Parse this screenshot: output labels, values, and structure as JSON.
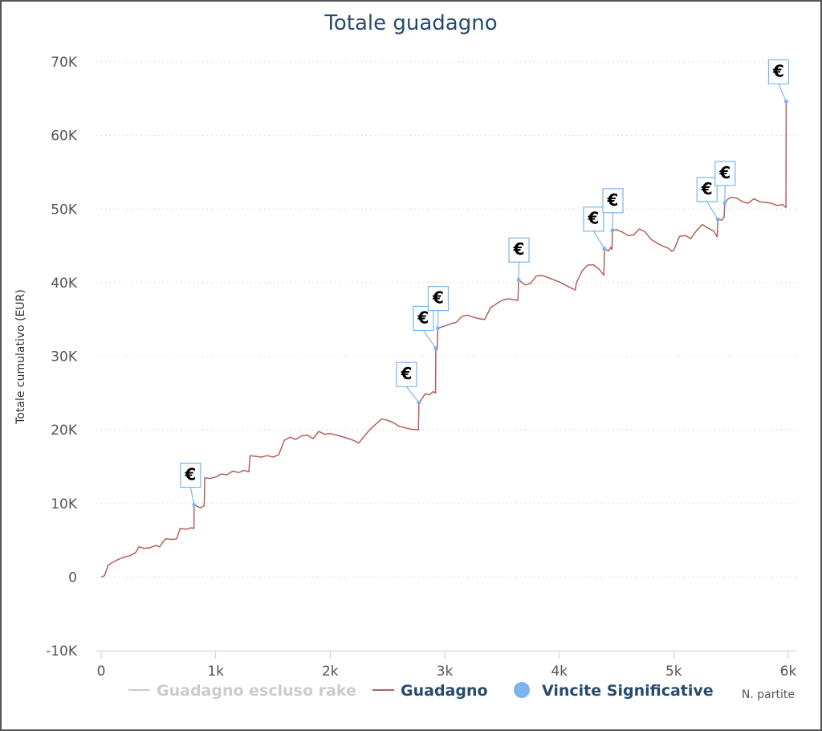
{
  "chart_data": {
    "type": "line",
    "title": "Totale guadagno",
    "xlabel": "N. partite",
    "ylabel": "Totale cumulativo (EUR)",
    "xlim": [
      0,
      6000
    ],
    "ylim": [
      -10000,
      70000
    ],
    "x_ticks": [
      0,
      1000,
      2000,
      3000,
      4000,
      5000,
      6000
    ],
    "x_tick_labels": [
      "0",
      "1k",
      "2k",
      "3k",
      "4k",
      "5k",
      "6k"
    ],
    "y_ticks": [
      -10000,
      0,
      10000,
      20000,
      30000,
      40000,
      50000,
      60000,
      70000
    ],
    "y_tick_labels": [
      "-10K",
      "0",
      "10K",
      "20K",
      "30K",
      "40K",
      "50K",
      "60K",
      "70K"
    ],
    "grid": "horizontal dotted",
    "legend_position": "bottom",
    "colors": {
      "guadagno": "#b3615c",
      "escluso_rake": "#cccccc",
      "vincite": "#7cb5ec",
      "title": "#274b6d",
      "legend_active": "#274b6d",
      "legend_inactive": "#cccccc"
    },
    "series": [
      {
        "name": "Guadagno escluso rake",
        "visible": false,
        "values": []
      },
      {
        "name": "Guadagno",
        "visible": true,
        "points": [
          [
            0,
            0
          ],
          [
            30,
            200
          ],
          [
            60,
            1600
          ],
          [
            100,
            2000
          ],
          [
            150,
            2400
          ],
          [
            200,
            2700
          ],
          [
            250,
            2900
          ],
          [
            300,
            3300
          ],
          [
            330,
            4100
          ],
          [
            380,
            3900
          ],
          [
            430,
            4000
          ],
          [
            480,
            4300
          ],
          [
            510,
            4100
          ],
          [
            560,
            5200
          ],
          [
            620,
            5100
          ],
          [
            660,
            5200
          ],
          [
            690,
            6600
          ],
          [
            740,
            6500
          ],
          [
            790,
            6700
          ],
          [
            810,
            6600
          ],
          [
            812,
            9800
          ],
          [
            840,
            9600
          ],
          [
            870,
            9400
          ],
          [
            900,
            9700
          ],
          [
            905,
            13500
          ],
          [
            950,
            13400
          ],
          [
            1000,
            13600
          ],
          [
            1050,
            14000
          ],
          [
            1100,
            13900
          ],
          [
            1150,
            14400
          ],
          [
            1200,
            14200
          ],
          [
            1250,
            14500
          ],
          [
            1290,
            14300
          ],
          [
            1300,
            16500
          ],
          [
            1350,
            16400
          ],
          [
            1400,
            16300
          ],
          [
            1450,
            16500
          ],
          [
            1500,
            16300
          ],
          [
            1550,
            16600
          ],
          [
            1600,
            18600
          ],
          [
            1650,
            19000
          ],
          [
            1700,
            18700
          ],
          [
            1750,
            19200
          ],
          [
            1800,
            19300
          ],
          [
            1850,
            18800
          ],
          [
            1900,
            19800
          ],
          [
            1950,
            19400
          ],
          [
            2000,
            19500
          ],
          [
            2100,
            19100
          ],
          [
            2200,
            18600
          ],
          [
            2250,
            18200
          ],
          [
            2300,
            19200
          ],
          [
            2350,
            20100
          ],
          [
            2400,
            20800
          ],
          [
            2450,
            21500
          ],
          [
            2500,
            21300
          ],
          [
            2550,
            21000
          ],
          [
            2600,
            20500
          ],
          [
            2650,
            20300
          ],
          [
            2700,
            20100
          ],
          [
            2770,
            20000
          ],
          [
            2775,
            23700
          ],
          [
            2800,
            24200
          ],
          [
            2830,
            24900
          ],
          [
            2870,
            24800
          ],
          [
            2900,
            25200
          ],
          [
            2920,
            25000
          ],
          [
            2922,
            31100
          ],
          [
            2935,
            30900
          ],
          [
            2940,
            33800
          ],
          [
            2980,
            34000
          ],
          [
            3050,
            34400
          ],
          [
            3100,
            34600
          ],
          [
            3150,
            35400
          ],
          [
            3200,
            35600
          ],
          [
            3250,
            35300
          ],
          [
            3300,
            35100
          ],
          [
            3350,
            35000
          ],
          [
            3400,
            36600
          ],
          [
            3450,
            37100
          ],
          [
            3500,
            37600
          ],
          [
            3550,
            37800
          ],
          [
            3600,
            37700
          ],
          [
            3640,
            37600
          ],
          [
            3645,
            40400
          ],
          [
            3700,
            39700
          ],
          [
            3750,
            39900
          ],
          [
            3800,
            40900
          ],
          [
            3850,
            41000
          ],
          [
            3900,
            40700
          ],
          [
            3950,
            40400
          ],
          [
            4000,
            40100
          ],
          [
            4050,
            39700
          ],
          [
            4100,
            39300
          ],
          [
            4140,
            39000
          ],
          [
            4150,
            40000
          ],
          [
            4200,
            41600
          ],
          [
            4250,
            42400
          ],
          [
            4300,
            42400
          ],
          [
            4350,
            41800
          ],
          [
            4390,
            41000
          ],
          [
            4395,
            44600
          ],
          [
            4430,
            44300
          ],
          [
            4450,
            44800
          ],
          [
            4460,
            44500
          ],
          [
            4465,
            47100
          ],
          [
            4500,
            47200
          ],
          [
            4550,
            46900
          ],
          [
            4600,
            46400
          ],
          [
            4650,
            46500
          ],
          [
            4700,
            47300
          ],
          [
            4750,
            46900
          ],
          [
            4800,
            45900
          ],
          [
            4850,
            45400
          ],
          [
            4900,
            45000
          ],
          [
            4950,
            44700
          ],
          [
            4980,
            44300
          ],
          [
            5000,
            44400
          ],
          [
            5050,
            46300
          ],
          [
            5100,
            46400
          ],
          [
            5150,
            46000
          ],
          [
            5200,
            47100
          ],
          [
            5250,
            47900
          ],
          [
            5300,
            47400
          ],
          [
            5350,
            47000
          ],
          [
            5380,
            46200
          ],
          [
            5385,
            48600
          ],
          [
            5420,
            48500
          ],
          [
            5440,
            48900
          ],
          [
            5445,
            50800
          ],
          [
            5470,
            51300
          ],
          [
            5500,
            51600
          ],
          [
            5550,
            51500
          ],
          [
            5600,
            51000
          ],
          [
            5650,
            50800
          ],
          [
            5700,
            51400
          ],
          [
            5750,
            51000
          ],
          [
            5800,
            50900
          ],
          [
            5850,
            50800
          ],
          [
            5900,
            50500
          ],
          [
            5950,
            50600
          ],
          [
            5980,
            50200
          ],
          [
            5982,
            64600
          ]
        ]
      },
      {
        "name": "Vincite Significative",
        "visible": true,
        "marker_label": "€",
        "points": [
          [
            812,
            9800
          ],
          [
            2775,
            23700
          ],
          [
            2922,
            31100
          ],
          [
            2940,
            33800
          ],
          [
            3645,
            40400
          ],
          [
            4395,
            44600
          ],
          [
            4465,
            47100
          ],
          [
            5385,
            48600
          ],
          [
            5445,
            50800
          ],
          [
            5982,
            64600
          ]
        ]
      }
    ]
  }
}
